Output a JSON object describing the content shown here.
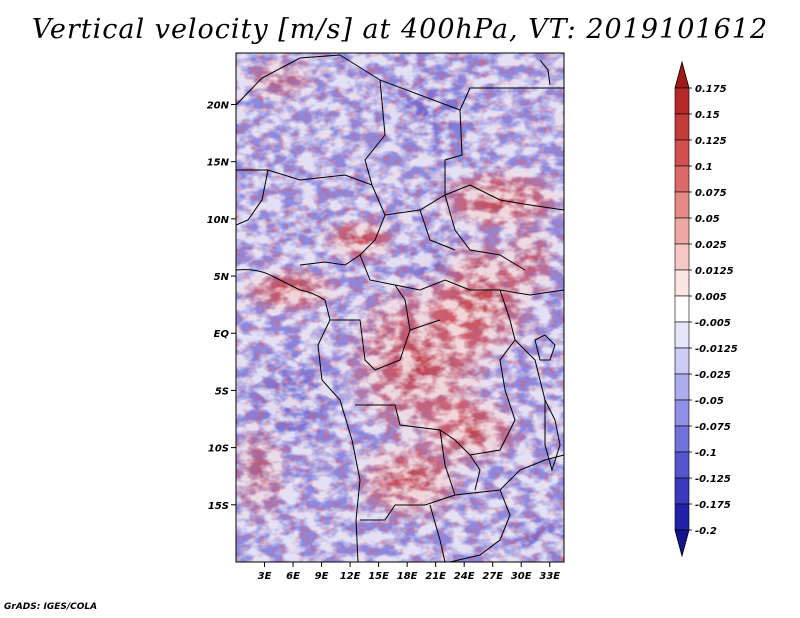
{
  "title": "Vertical velocity [m/s] at 400hPa, VT: 2019101612",
  "footer": "GrADS: IGES/COLA",
  "map": {
    "region": "Central Africa",
    "variable": "vertical velocity",
    "level": "400hPa",
    "valid_time": "2019101612",
    "lon_range": [
      0,
      34.5
    ],
    "lat_range": [
      -20,
      24.5
    ],
    "x_ticks": [
      "3E",
      "6E",
      "9E",
      "12E",
      "15E",
      "18E",
      "21E",
      "24E",
      "27E",
      "30E",
      "33E"
    ],
    "y_ticks": [
      "20N",
      "15N",
      "10N",
      "5N",
      "EQ",
      "5S",
      "10S",
      "15S"
    ]
  },
  "colorbar": {
    "labels": [
      "0.175",
      "0.15",
      "0.125",
      "0.1",
      "0.075",
      "0.05",
      "0.025",
      "0.0125",
      "0.005",
      "-0.005",
      "-0.0125",
      "-0.025",
      "-0.05",
      "-0.075",
      "-0.1",
      "-0.125",
      "-0.175",
      "-0.2"
    ],
    "colors": [
      "#a01818",
      "#b52828",
      "#c53a3a",
      "#d25050",
      "#dd6a68",
      "#e68a86",
      "#eea8a4",
      "#f5c8c4",
      "#fbe6e4",
      "#ffffff",
      "#e6e6fa",
      "#ccccf4",
      "#adadee",
      "#9090e6",
      "#7272dc",
      "#5555cc",
      "#3a3abc",
      "#2222a8",
      "#14148e"
    ]
  }
}
